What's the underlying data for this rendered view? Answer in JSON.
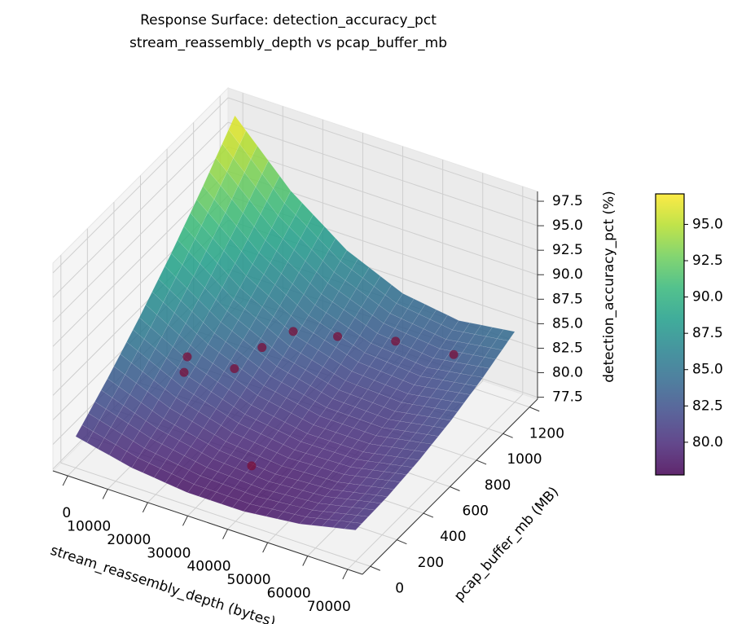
{
  "chart_data": {
    "type": "surface",
    "title": "Response Surface: detection_accuracy_pct",
    "subtitle": "stream_reassembly_depth vs pcap_buffer_mb",
    "xlabel": "stream_reassembly_depth (bytes)",
    "ylabel": "pcap_buffer_mb (MB)",
    "zlabel": "detection_accuracy_pct (%)",
    "x": [
      0,
      14000,
      28000,
      42000,
      56000,
      70000
    ],
    "y": [
      0,
      240,
      480,
      720,
      960,
      1200
    ],
    "z": [
      [
        80.5,
        79.22,
        78.58,
        78.58,
        79.22,
        80.5
      ],
      [
        83.16,
        80.98,
        79.64,
        79.14,
        79.48,
        80.66
      ],
      [
        86.14,
        83.06,
        81.02,
        80.02,
        80.06,
        81.14
      ],
      [
        89.44,
        85.46,
        82.72,
        81.22,
        80.96,
        81.94
      ],
      [
        93.06,
        88.18,
        84.74,
        82.74,
        82.18,
        83.06
      ],
      [
        97,
        91.22,
        87.08,
        84.58,
        83.72,
        84.5
      ]
    ],
    "points": {
      "color": "#7a0f3a",
      "x": [
        44000,
        7200,
        8000,
        19800,
        26700,
        34500,
        45600,
        60100,
        68000
      ],
      "y": [
        0,
        600,
        600,
        600,
        600,
        600,
        600,
        600,
        800
      ],
      "z": [
        83.5,
        79.9,
        81.6,
        82.0,
        85.1,
        87.8,
        88.8,
        90.3,
        87.3
      ]
    },
    "xlim": [
      -3700,
      73700
    ],
    "ylim": [
      -60,
      1260
    ],
    "zlim": [
      77.3,
      98.5
    ],
    "xticks": [
      0,
      10000,
      20000,
      30000,
      40000,
      50000,
      60000,
      70000
    ],
    "yticks": [
      0,
      200,
      400,
      600,
      800,
      1000,
      1200
    ],
    "zticks": [
      77.5,
      {
        "value": 80,
        "label": "80.0"
      },
      82.5,
      {
        "value": 85,
        "label": "85.0"
      },
      87.5,
      {
        "value": 90,
        "label": "90.0"
      },
      92.5,
      {
        "value": 95,
        "label": "95.0"
      },
      97.5
    ],
    "colormap": "viridis",
    "clim": [
      77.75,
      97.1
    ],
    "cticks": [
      {
        "value": 80,
        "label": "80.0"
      },
      82.5,
      {
        "value": 85,
        "label": "85.0"
      },
      87.5,
      {
        "value": 90,
        "label": "90.0"
      },
      92.5,
      {
        "value": 95,
        "label": "95.0"
      }
    ],
    "grid": true
  }
}
